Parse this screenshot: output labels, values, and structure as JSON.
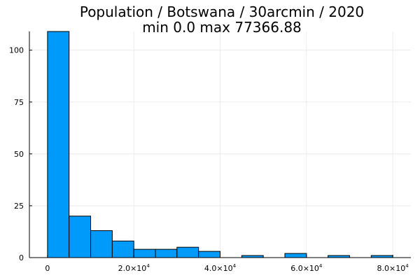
{
  "chart_data": {
    "type": "bar",
    "title": "Population / Botswana / 30arcmin / 2020",
    "subtitle": "min 0.0  max 77366.88",
    "xlabel": "",
    "ylabel": "",
    "bin_width": 5000,
    "x_bins": [
      {
        "start": 0,
        "end": 5000,
        "count": 109
      },
      {
        "start": 5000,
        "end": 10000,
        "count": 20
      },
      {
        "start": 10000,
        "end": 15000,
        "count": 13
      },
      {
        "start": 15000,
        "end": 20000,
        "count": 8
      },
      {
        "start": 20000,
        "end": 25000,
        "count": 4
      },
      {
        "start": 25000,
        "end": 30000,
        "count": 4
      },
      {
        "start": 30000,
        "end": 35000,
        "count": 5
      },
      {
        "start": 35000,
        "end": 40000,
        "count": 3
      },
      {
        "start": 40000,
        "end": 45000,
        "count": 0
      },
      {
        "start": 45000,
        "end": 50000,
        "count": 1
      },
      {
        "start": 50000,
        "end": 55000,
        "count": 0
      },
      {
        "start": 55000,
        "end": 60000,
        "count": 2
      },
      {
        "start": 60000,
        "end": 65000,
        "count": 0
      },
      {
        "start": 65000,
        "end": 70000,
        "count": 1
      },
      {
        "start": 70000,
        "end": 75000,
        "count": 0
      },
      {
        "start": 75000,
        "end": 80000,
        "count": 1
      }
    ],
    "xlim": [
      -4200,
      84200
    ],
    "ylim": [
      0,
      109
    ],
    "x_ticks": [
      {
        "value": 0,
        "mantissa": "0",
        "exponent": ""
      },
      {
        "value": 20000,
        "mantissa": "2.0×10",
        "exponent": "4"
      },
      {
        "value": 40000,
        "mantissa": "4.0×10",
        "exponent": "4"
      },
      {
        "value": 60000,
        "mantissa": "6.0×10",
        "exponent": "4"
      },
      {
        "value": 80000,
        "mantissa": "8.0×10",
        "exponent": "4"
      }
    ],
    "y_ticks": [
      {
        "value": 0,
        "label": "0"
      },
      {
        "value": 25,
        "label": "25"
      },
      {
        "value": 50,
        "label": "50"
      },
      {
        "value": 75,
        "label": "75"
      },
      {
        "value": 100,
        "label": "100"
      }
    ],
    "grid": true,
    "legend": "none",
    "colors": {
      "bar_fill": "#009AFA",
      "bar_stroke": "#000000",
      "grid": "#E8E8E8",
      "axis": "#000000"
    }
  }
}
